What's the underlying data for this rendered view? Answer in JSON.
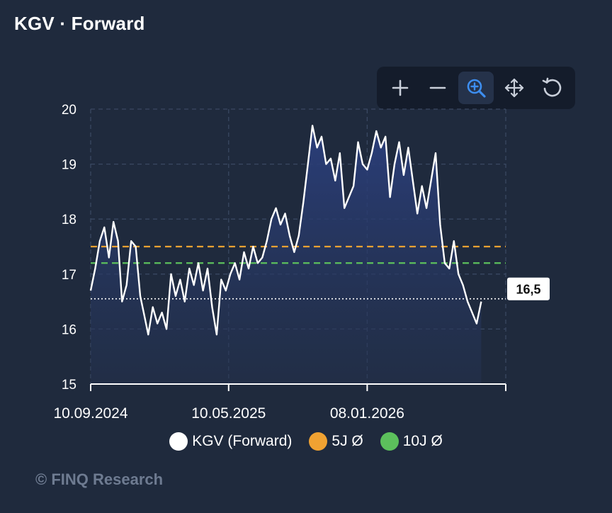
{
  "header": {
    "title": "KGV · Forward"
  },
  "toolbar": {
    "tools": [
      {
        "name": "zoom-in-icon",
        "active": false
      },
      {
        "name": "zoom-out-icon",
        "active": false
      },
      {
        "name": "selection-zoom-icon",
        "active": true
      },
      {
        "name": "pan-icon",
        "active": false
      },
      {
        "name": "reset-icon",
        "active": false
      }
    ]
  },
  "colors": {
    "background": "#1f2a3d",
    "series": "#ffffff",
    "avg5": "#f0a232",
    "avg10": "#5cc05c",
    "active_tool": "#3d8ef0"
  },
  "legend": {
    "items": [
      {
        "label": "KGV (Forward)",
        "color": "#ffffff"
      },
      {
        "label": "5J Ø",
        "color": "#f0a232"
      },
      {
        "label": "10J Ø",
        "color": "#5cc05c"
      }
    ]
  },
  "footer": {
    "credit": "© FINQ Research"
  },
  "chart_data": {
    "type": "area",
    "title": "KGV · Forward",
    "x_range": [
      "2024-09-10",
      "2026-09-08"
    ],
    "ylim": [
      15,
      20
    ],
    "yticks": [
      "20",
      "19",
      "18",
      "17",
      "16",
      "15"
    ],
    "xticks": [
      "10.09.2024",
      "10.05.2025",
      "08.01.2026"
    ],
    "grid": true,
    "legend_position": "bottom",
    "last_value_label": "16,5",
    "reference_lines": [
      {
        "name": "5J Ø",
        "value": 17.5,
        "style": "dashed"
      },
      {
        "name": "10J Ø",
        "value": 17.2,
        "style": "dashed"
      },
      {
        "name": "current",
        "value": 16.55,
        "style": "dotted"
      }
    ],
    "series": [
      {
        "name": "KGV (Forward)",
        "points": [
          [
            "2024-09-10",
            16.7
          ],
          [
            "2024-09-18",
            17.1
          ],
          [
            "2024-09-26",
            17.6
          ],
          [
            "2024-10-04",
            17.85
          ],
          [
            "2024-10-12",
            17.3
          ],
          [
            "2024-10-20",
            17.95
          ],
          [
            "2024-10-28",
            17.6
          ],
          [
            "2024-11-04",
            16.5
          ],
          [
            "2024-11-12",
            16.8
          ],
          [
            "2024-11-20",
            17.6
          ],
          [
            "2024-11-28",
            17.5
          ],
          [
            "2024-12-06",
            16.6
          ],
          [
            "2024-12-14",
            16.2
          ],
          [
            "2024-12-20",
            15.9
          ],
          [
            "2024-12-28",
            16.4
          ],
          [
            "2025-01-05",
            16.1
          ],
          [
            "2025-01-13",
            16.3
          ],
          [
            "2025-01-21",
            16.0
          ],
          [
            "2025-01-29",
            17.0
          ],
          [
            "2025-02-06",
            16.6
          ],
          [
            "2025-02-14",
            16.9
          ],
          [
            "2025-02-22",
            16.5
          ],
          [
            "2025-03-02",
            17.1
          ],
          [
            "2025-03-10",
            16.8
          ],
          [
            "2025-03-18",
            17.2
          ],
          [
            "2025-03-26",
            16.7
          ],
          [
            "2025-04-03",
            17.1
          ],
          [
            "2025-04-11",
            16.4
          ],
          [
            "2025-04-19",
            15.9
          ],
          [
            "2025-04-27",
            16.9
          ],
          [
            "2025-05-05",
            16.7
          ],
          [
            "2025-05-13",
            17.0
          ],
          [
            "2025-05-21",
            17.2
          ],
          [
            "2025-05-29",
            16.9
          ],
          [
            "2025-06-06",
            17.4
          ],
          [
            "2025-06-14",
            17.1
          ],
          [
            "2025-06-22",
            17.5
          ],
          [
            "2025-06-30",
            17.2
          ],
          [
            "2025-07-08",
            17.3
          ],
          [
            "2025-07-16",
            17.6
          ],
          [
            "2025-07-24",
            18.0
          ],
          [
            "2025-08-01",
            18.2
          ],
          [
            "2025-08-09",
            17.9
          ],
          [
            "2025-08-17",
            18.1
          ],
          [
            "2025-08-25",
            17.7
          ],
          [
            "2025-09-02",
            17.4
          ],
          [
            "2025-09-10",
            17.7
          ],
          [
            "2025-09-18",
            18.3
          ],
          [
            "2025-09-26",
            19.0
          ],
          [
            "2025-10-04",
            19.7
          ],
          [
            "2025-10-12",
            19.3
          ],
          [
            "2025-10-20",
            19.5
          ],
          [
            "2025-10-28",
            19.0
          ],
          [
            "2025-11-05",
            19.1
          ],
          [
            "2025-11-13",
            18.7
          ],
          [
            "2025-11-21",
            19.2
          ],
          [
            "2025-11-29",
            18.2
          ],
          [
            "2025-12-07",
            18.4
          ],
          [
            "2025-12-15",
            18.6
          ],
          [
            "2025-12-23",
            19.4
          ],
          [
            "2025-12-31",
            19.0
          ],
          [
            "2026-01-08",
            18.9
          ],
          [
            "2026-01-16",
            19.2
          ],
          [
            "2026-01-24",
            19.6
          ],
          [
            "2026-02-01",
            19.3
          ],
          [
            "2026-02-09",
            19.5
          ],
          [
            "2026-02-17",
            18.4
          ],
          [
            "2026-02-25",
            19.0
          ],
          [
            "2026-03-05",
            19.4
          ],
          [
            "2026-03-13",
            18.8
          ],
          [
            "2026-03-21",
            19.3
          ],
          [
            "2026-03-29",
            18.7
          ],
          [
            "2026-04-06",
            18.1
          ],
          [
            "2026-04-14",
            18.6
          ],
          [
            "2026-04-22",
            18.2
          ],
          [
            "2026-04-30",
            18.7
          ],
          [
            "2026-05-08",
            19.2
          ],
          [
            "2026-05-16",
            17.9
          ],
          [
            "2026-05-24",
            17.2
          ],
          [
            "2026-06-01",
            17.1
          ],
          [
            "2026-06-09",
            17.6
          ],
          [
            "2026-06-17",
            17.0
          ],
          [
            "2026-06-25",
            16.8
          ],
          [
            "2026-07-03",
            16.5
          ],
          [
            "2026-07-11",
            16.3
          ],
          [
            "2026-07-19",
            16.1
          ],
          [
            "2026-07-27",
            16.5
          ]
        ]
      }
    ]
  }
}
